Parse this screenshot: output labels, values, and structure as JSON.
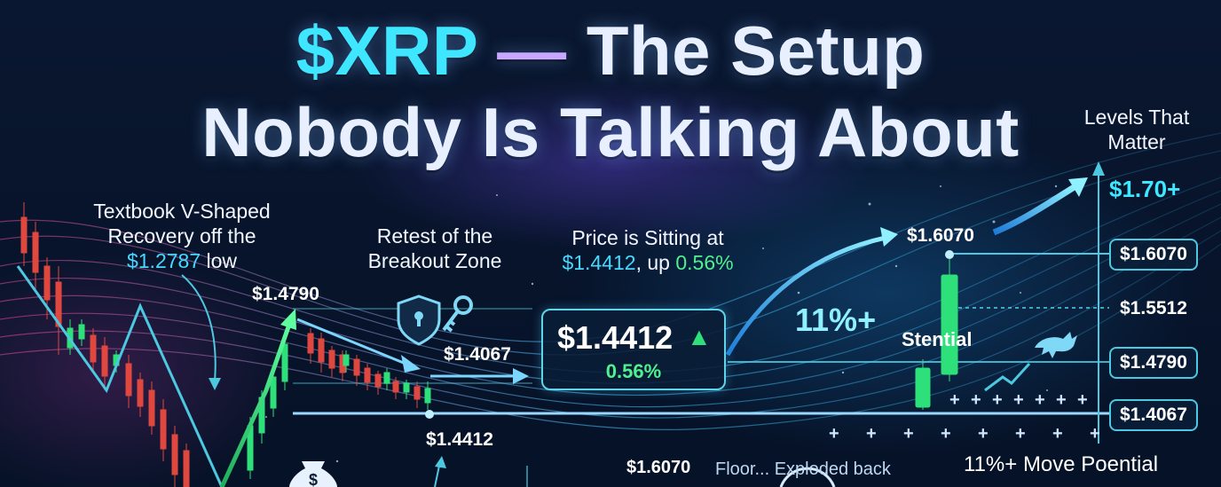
{
  "title": {
    "ticker": "$XRP",
    "dash": "—",
    "line1_rest": "The Setup",
    "line2": "Nobody Is Talking About"
  },
  "annotations": {
    "v_recovery": {
      "line1": "Textbook V-Shaped",
      "line2": "Recovery off the",
      "price": "$1.2787",
      "suffix": "low"
    },
    "retest": {
      "line1": "Retest of the",
      "line2": "Breakout Zone"
    },
    "sitting": {
      "line1": "Price is Sitting at",
      "price": "$1.4412",
      "mid": ", up",
      "pct": "0.56%"
    },
    "potential_pct": "11%+",
    "potential_word": "Stential",
    "move_potential": "11%+ Move Poential",
    "floor_text": "Floor... Exploded back"
  },
  "price_labels": {
    "peak": "$1.4790",
    "retest_level": "$1.4067",
    "current_below": "$1.4412",
    "target_top": "$1.6070",
    "bottom_target": "$1.6070"
  },
  "price_card": {
    "price": "$1.4412",
    "change": "0.56%",
    "arrow": "▲"
  },
  "levels_panel": {
    "title_line1": "Levels That",
    "title_line2": "Matter",
    "top_target": "$1.70+",
    "levels": [
      "$1.6070",
      "$1.5512",
      "$1.4790",
      "$1.4067"
    ]
  },
  "colors": {
    "accent_cyan": "#3ee6ff",
    "bull_green": "#2ee07a",
    "bear_red": "#e0473f",
    "background": "#07142b"
  },
  "icons": [
    "shield-lock-icon",
    "key-icon",
    "bull-icon",
    "money-bag-icon"
  ]
}
